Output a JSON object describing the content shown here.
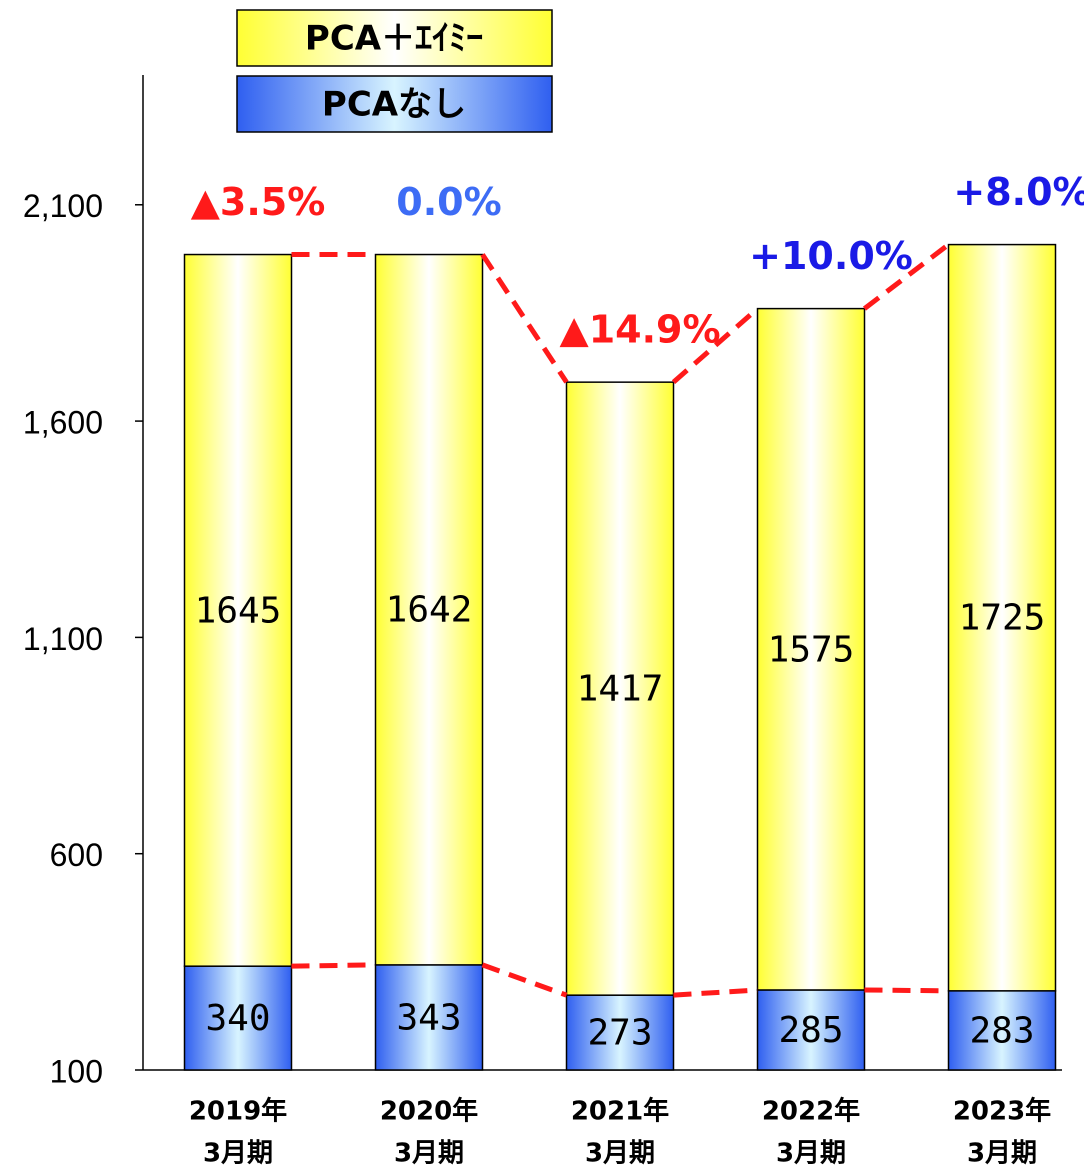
{
  "chart_data": {
    "type": "stacked_bar",
    "categories": [
      [
        "2019年",
        "3月期"
      ],
      [
        "2020年",
        "3月期"
      ],
      [
        "2021年",
        "3月期"
      ],
      [
        "2022年",
        "3月期"
      ],
      [
        "2023年",
        "3月期"
      ]
    ],
    "series": [
      {
        "name": "PCAなし",
        "color": "#3a6cf0",
        "values": [
          340,
          343,
          273,
          285,
          283
        ]
      },
      {
        "name": "PCA＋ｴｲﾐｰ",
        "color": "#ffff33",
        "values": [
          1645,
          1642,
          1417,
          1575,
          1725
        ]
      }
    ],
    "annotations": [
      {
        "text": "▲3.5%",
        "color": "#ff1a1a"
      },
      {
        "text": "0.0%",
        "color": "#3d6cf5"
      },
      {
        "text": "▲14.9%",
        "color": "#ff1a1a"
      },
      {
        "text": "+10.0%",
        "color": "#1a1ae6"
      },
      {
        "text": "+8.0%",
        "color": "#1a1ae6"
      }
    ],
    "connector_color": "#ff1a1a",
    "ylim": [
      100,
      2400
    ],
    "yticks": [
      100,
      600,
      {
        "value": 1100,
        "label": "1,100"
      },
      {
        "value": 1600,
        "label": "1,600"
      },
      {
        "value": 2100,
        "label": "2,100"
      }
    ]
  }
}
